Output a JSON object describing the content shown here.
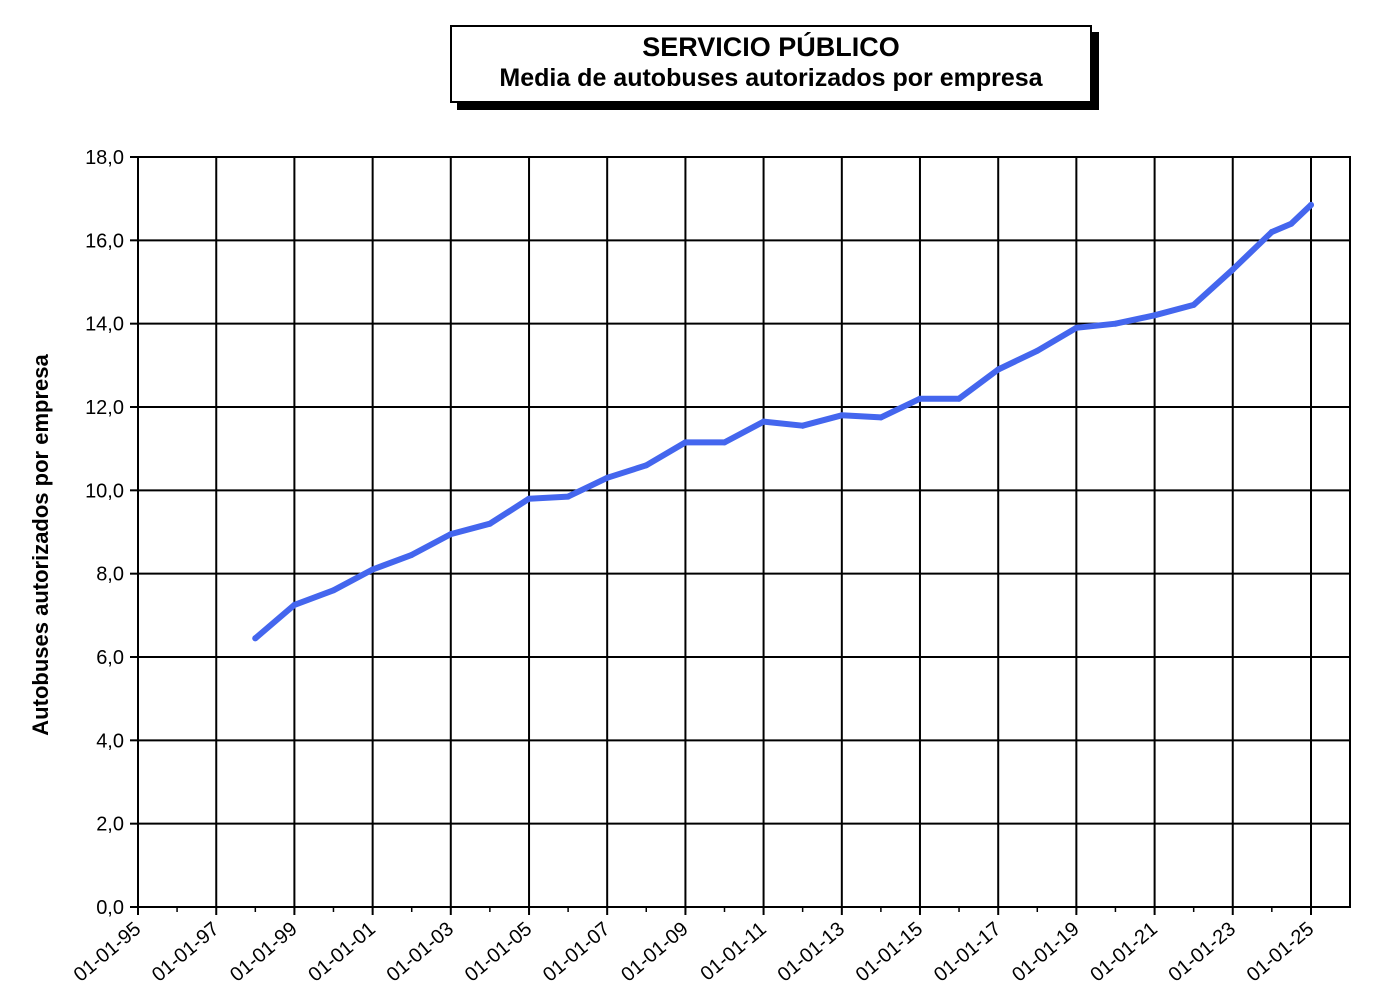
{
  "chart_data": {
    "type": "line",
    "title": "SERVICIO PÚBLICO",
    "subtitle": "Media de autobuses autorizados por empresa",
    "ylabel": "Autobuses  autorizados por empresa",
    "xlabel": "",
    "ylim": [
      0,
      18
    ],
    "y_ticks": [
      "0,0",
      "2,0",
      "4,0",
      "6,0",
      "8,0",
      "10,0",
      "12,0",
      "14,0",
      "16,0",
      "18,0"
    ],
    "x_ticks": [
      "01-01-95",
      "01-01-97",
      "01-01-99",
      "01-01-01",
      "01-01-03",
      "01-01-05",
      "01-01-07",
      "01-01-09",
      "01-01-11",
      "01-01-13",
      "01-01-15",
      "01-01-17",
      "01-01-19",
      "01-01-21",
      "01-01-23",
      "01-01-25"
    ],
    "grid": true,
    "line_color": "#4466ee",
    "series": [
      {
        "x": [
          "01-01-98",
          "01-01-99",
          "01-01-00",
          "01-01-01",
          "01-01-02",
          "01-01-03",
          "01-01-04",
          "01-01-05",
          "01-01-06",
          "01-01-07",
          "01-01-08",
          "01-01-09",
          "01-01-10",
          "01-01-11",
          "01-01-12",
          "01-01-13",
          "01-01-14",
          "01-01-15",
          "01-01-16",
          "01-01-17",
          "01-01-18",
          "01-01-19",
          "01-01-20",
          "01-01-21",
          "01-01-22",
          "01-01-23",
          "01-01-24",
          "01-07-24",
          "01-01-25"
        ],
        "values": [
          6.45,
          7.25,
          7.6,
          8.1,
          8.45,
          8.95,
          9.2,
          9.8,
          9.85,
          10.3,
          10.6,
          11.15,
          11.15,
          11.65,
          11.55,
          11.8,
          11.75,
          12.2,
          12.2,
          12.9,
          13.35,
          13.9,
          14.0,
          14.2,
          14.45,
          15.3,
          16.2,
          16.4,
          16.85
        ]
      }
    ]
  }
}
